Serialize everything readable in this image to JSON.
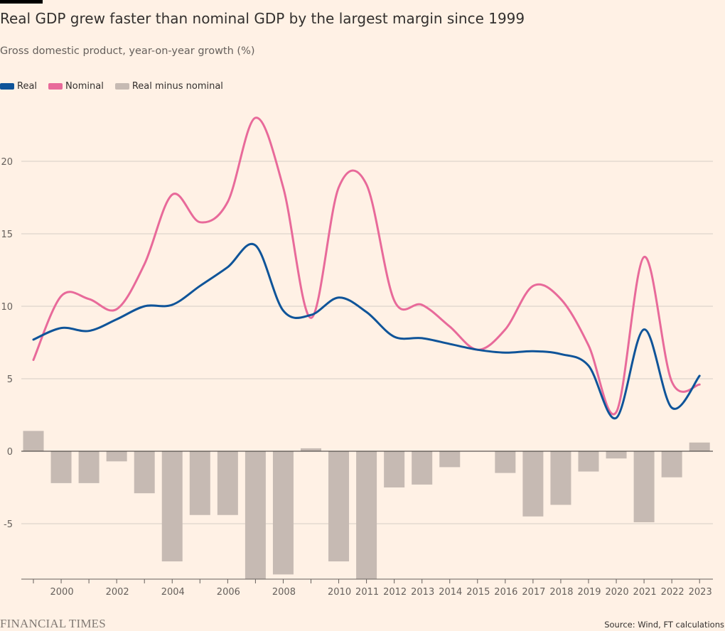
{
  "title": "Real GDP grew faster than nominal GDP by the largest margin since 1999",
  "subtitle": "Gross domestic product, year-on-year growth (%)",
  "legend": [
    {
      "label": "Real",
      "color": "#0F5499"
    },
    {
      "label": "Nominal",
      "color": "#E86A9A"
    },
    {
      "label": "Real minus nominal",
      "color": "#C6BAB3"
    }
  ],
  "source": "Source: Wind, FT calculations",
  "brand": "FINANCIAL TIMES",
  "chart_data": {
    "type": "line",
    "x": [
      1999,
      2000,
      2001,
      2002,
      2003,
      2004,
      2005,
      2006,
      2007,
      2008,
      2009,
      2010,
      2011,
      2012,
      2013,
      2014,
      2015,
      2016,
      2017,
      2018,
      2019,
      2020,
      2021,
      2022,
      2023
    ],
    "x_tick_labels": [
      "2000",
      "2002",
      "2004",
      "2006",
      "2008",
      "2010",
      "2011",
      "2012",
      "2013",
      "2014",
      "2015",
      "2016",
      "2017",
      "2018",
      "2019",
      "2020",
      "2021",
      "2022",
      "2023"
    ],
    "y_ticks": [
      -5,
      0,
      5,
      10,
      15,
      20
    ],
    "y_tick_labels": [
      "-5",
      "0",
      "5",
      "10",
      "15",
      "20"
    ],
    "ylim": [
      -8.9,
      23
    ],
    "grid": true,
    "legend_position": "top-left",
    "series": [
      {
        "name": "Real",
        "type": "line",
        "color": "#0F5499",
        "values": [
          7.7,
          8.5,
          8.3,
          9.1,
          10.0,
          10.1,
          11.4,
          12.7,
          14.2,
          9.7,
          9.4,
          10.6,
          9.6,
          7.9,
          7.8,
          7.4,
          7.0,
          6.8,
          6.9,
          6.7,
          5.9,
          2.3,
          8.4,
          3.0,
          5.2
        ]
      },
      {
        "name": "Nominal",
        "type": "line",
        "color": "#E86A9A",
        "values": [
          6.3,
          10.7,
          10.5,
          9.8,
          12.9,
          17.7,
          15.8,
          17.2,
          23.0,
          18.2,
          9.2,
          18.2,
          18.4,
          10.4,
          10.1,
          8.6,
          7.0,
          8.4,
          11.4,
          10.5,
          7.3,
          2.7,
          13.4,
          4.8,
          4.6
        ]
      },
      {
        "name": "Real minus nominal",
        "type": "bar",
        "color": "#C6BAB3",
        "values": [
          1.4,
          -2.2,
          -2.2,
          -0.7,
          -2.9,
          -7.6,
          -4.4,
          -4.4,
          -8.8,
          -8.5,
          0.2,
          -7.6,
          -8.8,
          -2.5,
          -2.3,
          -1.1,
          0.0,
          -1.5,
          -4.5,
          -3.7,
          -1.4,
          -0.5,
          -4.9,
          -1.8,
          0.6
        ]
      }
    ]
  }
}
